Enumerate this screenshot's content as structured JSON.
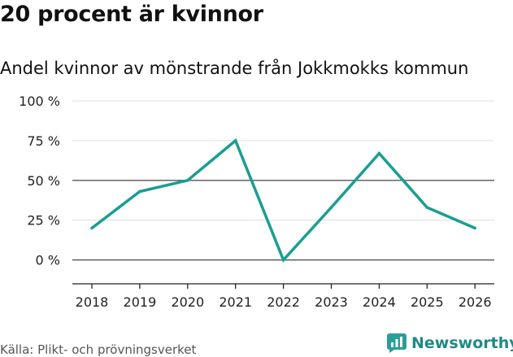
{
  "title": "20 procent är kvinnor",
  "subtitle": "Andel kvinnor av mönstrande från Jokkmokks kommun",
  "source": "Källa: Plikt- och prövningsverket",
  "brand": {
    "name": "Newsworthy",
    "icon": "newsworthy-chart-logo-icon",
    "color": "#2a9d98"
  },
  "colors": {
    "line": "#1a9e92",
    "grid": "#dddddd",
    "axis": "#222222"
  },
  "chart_data": {
    "type": "line",
    "x": [
      2018,
      2019,
      2020,
      2021,
      2022,
      2023,
      2024,
      2025,
      2026
    ],
    "x_tick_labels": [
      "2018",
      "2019",
      "2020",
      "2021",
      "2022",
      "2023",
      "2024",
      "2025",
      "2026"
    ],
    "series": [
      {
        "values": [
          20,
          43,
          50,
          75,
          0,
          33,
          67,
          33,
          20
        ]
      }
    ],
    "y_ticks": [
      0,
      25,
      50,
      75,
      100
    ],
    "y_tick_labels": [
      "0 %",
      "25 %",
      "50 %",
      "75 %",
      "100 %"
    ],
    "ylim": [
      -15,
      100
    ],
    "xlabel": "",
    "ylabel": "",
    "grid": true,
    "emphasized_gridlines": [
      0,
      50
    ]
  }
}
